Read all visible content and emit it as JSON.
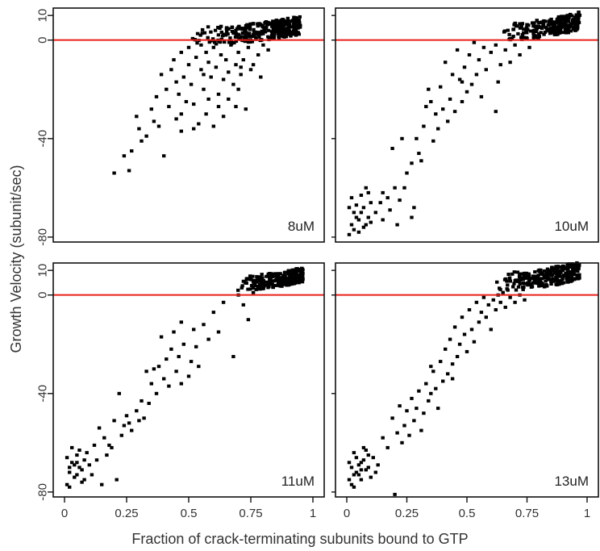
{
  "chart_data": {
    "type": "scatter",
    "xlabel": "Fraction of crack-terminating subunits bound to GTP",
    "ylabel": "Growth Velocity (subunit/sec)",
    "xlim": [
      0,
      1
    ],
    "ylim": [
      -82,
      13
    ],
    "x_ticks": [
      0,
      0.25,
      0.5,
      0.75,
      1
    ],
    "x_tick_labels": [
      "0",
      "0.25",
      "0.5",
      "0.75",
      "1"
    ],
    "y_ticks": [
      10,
      0,
      -40,
      -80
    ],
    "y_tick_labels": [
      "10",
      "0",
      "-40",
      "-80"
    ],
    "reference_line": {
      "y": 0,
      "color": "#e8211c"
    },
    "marker_color": "#000000",
    "grid": false,
    "panels": [
      {
        "label": "8uM",
        "points": [
          [
            0.2,
            -54
          ],
          [
            0.24,
            -47
          ],
          [
            0.26,
            -53
          ],
          [
            0.27,
            -45
          ],
          [
            0.29,
            -31
          ],
          [
            0.3,
            -36
          ],
          [
            0.31,
            -41
          ],
          [
            0.33,
            -39
          ],
          [
            0.35,
            -28
          ],
          [
            0.36,
            -33
          ],
          [
            0.37,
            -23
          ],
          [
            0.38,
            -35
          ],
          [
            0.39,
            -14
          ],
          [
            0.4,
            -47
          ],
          [
            0.41,
            -20
          ],
          [
            0.42,
            -27
          ],
          [
            0.43,
            -12
          ],
          [
            0.44,
            -8
          ],
          [
            0.45,
            -32
          ],
          [
            0.45,
            -17
          ],
          [
            0.46,
            -22
          ],
          [
            0.47,
            -30
          ],
          [
            0.47,
            -5
          ],
          [
            0.48,
            -15
          ],
          [
            0.49,
            -25
          ],
          [
            0.5,
            -10
          ],
          [
            0.5,
            -3
          ],
          [
            0.51,
            -18
          ],
          [
            0.52,
            -26
          ],
          [
            0.53,
            -7
          ],
          [
            0.54,
            -34
          ],
          [
            0.55,
            -12
          ],
          [
            0.55,
            -2
          ],
          [
            0.56,
            -20
          ],
          [
            0.57,
            -30
          ],
          [
            0.57,
            -5
          ],
          [
            0.58,
            -9
          ],
          [
            0.59,
            -15
          ],
          [
            0.6,
            -3
          ],
          [
            0.6,
            -35
          ],
          [
            0.61,
            -11
          ],
          [
            0.62,
            -22
          ],
          [
            0.63,
            -6
          ],
          [
            0.64,
            -16
          ],
          [
            0.65,
            -8
          ],
          [
            0.66,
            -13
          ],
          [
            0.67,
            -2
          ],
          [
            0.68,
            -18
          ],
          [
            0.69,
            -10
          ],
          [
            0.7,
            -5
          ],
          [
            0.71,
            -14
          ],
          [
            0.72,
            -8
          ],
          [
            0.73,
            -28
          ],
          [
            0.74,
            -3
          ],
          [
            0.75,
            -12
          ],
          [
            0.62,
            -27
          ],
          [
            0.66,
            -24
          ],
          [
            0.7,
            -20
          ],
          [
            0.64,
            -31
          ],
          [
            0.58,
            -24
          ],
          [
            0.78,
            -6
          ],
          [
            0.8,
            -2
          ],
          [
            0.82,
            -4
          ],
          [
            0.76,
            -10
          ],
          [
            0.79,
            -15
          ],
          [
            0.71,
            -11
          ],
          [
            0.52,
            -36
          ],
          [
            0.47,
            -37
          ],
          [
            0.69,
            -27
          ],
          [
            0.56,
            -14
          ]
        ],
        "dense_cluster": {
          "x": [
            0.48,
            0.95
          ],
          "y": [
            -2,
            8
          ],
          "count": 320
        }
      },
      {
        "label": "10uM",
        "points": [
          [
            0.01,
            -79
          ],
          [
            0.02,
            -75
          ],
          [
            0.03,
            -70
          ],
          [
            0.04,
            -67
          ],
          [
            0.05,
            -73
          ],
          [
            0.06,
            -63
          ],
          [
            0.07,
            -68
          ],
          [
            0.08,
            -60
          ],
          [
            0.09,
            -72
          ],
          [
            0.1,
            -66
          ],
          [
            0.01,
            -68
          ],
          [
            0.02,
            -64
          ],
          [
            0.03,
            -77
          ],
          [
            0.05,
            -78
          ],
          [
            0.06,
            -70
          ],
          [
            0.08,
            -75
          ],
          [
            0.09,
            -62
          ],
          [
            0.1,
            -74
          ],
          [
            0.04,
            -72
          ],
          [
            0.07,
            -76
          ],
          [
            0.12,
            -70
          ],
          [
            0.14,
            -66
          ],
          [
            0.15,
            -73
          ],
          [
            0.17,
            -64
          ],
          [
            0.18,
            -69
          ],
          [
            0.19,
            -44
          ],
          [
            0.2,
            -60
          ],
          [
            0.21,
            -75
          ],
          [
            0.22,
            -65
          ],
          [
            0.24,
            -60
          ],
          [
            0.25,
            -54
          ],
          [
            0.27,
            -50
          ],
          [
            0.28,
            -68
          ],
          [
            0.29,
            -40
          ],
          [
            0.3,
            -46
          ],
          [
            0.31,
            -49
          ],
          [
            0.32,
            -35
          ],
          [
            0.34,
            -20
          ],
          [
            0.35,
            -25
          ],
          [
            0.36,
            -41
          ],
          [
            0.37,
            -30
          ],
          [
            0.38,
            -36
          ],
          [
            0.39,
            -19
          ],
          [
            0.4,
            -28
          ],
          [
            0.41,
            -9
          ],
          [
            0.42,
            -33
          ],
          [
            0.43,
            -24
          ],
          [
            0.44,
            -14
          ],
          [
            0.45,
            -29
          ],
          [
            0.46,
            -4
          ],
          [
            0.47,
            -16
          ],
          [
            0.48,
            -25
          ],
          [
            0.49,
            -11
          ],
          [
            0.5,
            -21
          ],
          [
            0.51,
            -6
          ],
          [
            0.52,
            -18
          ],
          [
            0.53,
            -1
          ],
          [
            0.54,
            -14
          ],
          [
            0.55,
            -8
          ],
          [
            0.56,
            -23
          ],
          [
            0.57,
            -3
          ],
          [
            0.58,
            -12
          ],
          [
            0.6,
            -5
          ],
          [
            0.62,
            -2
          ],
          [
            0.63,
            -17
          ],
          [
            0.64,
            -10
          ],
          [
            0.66,
            -4
          ],
          [
            0.68,
            -9
          ],
          [
            0.7,
            -2
          ],
          [
            0.72,
            -6
          ],
          [
            0.74,
            1
          ],
          [
            0.76,
            -3
          ],
          [
            0.62,
            -29
          ],
          [
            0.48,
            -17
          ],
          [
            0.27,
            -72
          ],
          [
            0.23,
            -40
          ],
          [
            0.15,
            -62
          ],
          [
            0.33,
            -27
          ]
        ],
        "dense_cluster": {
          "x": [
            0.64,
            0.97
          ],
          "y": [
            0,
            10
          ],
          "count": 240
        }
      },
      {
        "label": "11uM",
        "points": [
          [
            0.01,
            -77
          ],
          [
            0.02,
            -72
          ],
          [
            0.03,
            -68
          ],
          [
            0.04,
            -74
          ],
          [
            0.05,
            -65
          ],
          [
            0.06,
            -70
          ],
          [
            0.07,
            -76
          ],
          [
            0.08,
            -67
          ],
          [
            0.01,
            -66
          ],
          [
            0.02,
            -78
          ],
          [
            0.03,
            -62
          ],
          [
            0.04,
            -69
          ],
          [
            0.05,
            -73
          ],
          [
            0.06,
            -63
          ],
          [
            0.07,
            -71
          ],
          [
            0.08,
            -75
          ],
          [
            0.09,
            -64
          ],
          [
            0.1,
            -69
          ],
          [
            0.02,
            -70
          ],
          [
            0.05,
            -68
          ],
          [
            0.11,
            -73
          ],
          [
            0.12,
            -61
          ],
          [
            0.13,
            -67
          ],
          [
            0.14,
            -54
          ],
          [
            0.15,
            -77
          ],
          [
            0.16,
            -58
          ],
          [
            0.17,
            -65
          ],
          [
            0.18,
            -61
          ],
          [
            0.19,
            -62
          ],
          [
            0.2,
            -51
          ],
          [
            0.21,
            -75
          ],
          [
            0.22,
            -40
          ],
          [
            0.23,
            -57
          ],
          [
            0.24,
            -53
          ],
          [
            0.25,
            -49
          ],
          [
            0.26,
            -52
          ],
          [
            0.27,
            -55
          ],
          [
            0.29,
            -47
          ],
          [
            0.3,
            -51
          ],
          [
            0.31,
            -43
          ],
          [
            0.32,
            -50
          ],
          [
            0.33,
            -31
          ],
          [
            0.34,
            -44
          ],
          [
            0.35,
            -36
          ],
          [
            0.36,
            -30
          ],
          [
            0.37,
            -40
          ],
          [
            0.38,
            -29
          ],
          [
            0.39,
            -17
          ],
          [
            0.4,
            -34
          ],
          [
            0.41,
            -26
          ],
          [
            0.42,
            -37
          ],
          [
            0.43,
            -22
          ],
          [
            0.44,
            -15
          ],
          [
            0.45,
            -31
          ],
          [
            0.46,
            -25
          ],
          [
            0.47,
            -36
          ],
          [
            0.48,
            -20
          ],
          [
            0.5,
            -33
          ],
          [
            0.51,
            -27
          ],
          [
            0.52,
            -14
          ],
          [
            0.54,
            -29
          ],
          [
            0.56,
            -12
          ],
          [
            0.58,
            -18
          ],
          [
            0.6,
            -7
          ],
          [
            0.62,
            -15
          ],
          [
            0.64,
            -3
          ],
          [
            0.68,
            -25
          ],
          [
            0.7,
            0
          ],
          [
            0.72,
            -4
          ],
          [
            0.74,
            -10
          ],
          [
            0.76,
            1
          ],
          [
            0.53,
            -21
          ],
          [
            0.47,
            -11
          ]
        ],
        "dense_cluster": {
          "x": [
            0.68,
            0.96
          ],
          "y": [
            2,
            10
          ],
          "count": 260
        }
      },
      {
        "label": "13uM",
        "points": [
          [
            0.01,
            -75
          ],
          [
            0.02,
            -70
          ],
          [
            0.03,
            -78
          ],
          [
            0.04,
            -66
          ],
          [
            0.05,
            -73
          ],
          [
            0.06,
            -68
          ],
          [
            0.07,
            -62
          ],
          [
            0.08,
            -71
          ],
          [
            0.01,
            -68
          ],
          [
            0.02,
            -77
          ],
          [
            0.03,
            -64
          ],
          [
            0.04,
            -72
          ],
          [
            0.05,
            -69
          ],
          [
            0.06,
            -75
          ],
          [
            0.07,
            -67
          ],
          [
            0.08,
            -63
          ],
          [
            0.09,
            -70
          ],
          [
            0.1,
            -74
          ],
          [
            0.11,
            -66
          ],
          [
            0.12,
            -72
          ],
          [
            0.03,
            -73
          ],
          [
            0.06,
            -71
          ],
          [
            0.09,
            -65
          ],
          [
            0.13,
            -69
          ],
          [
            0.15,
            -58
          ],
          [
            0.17,
            -62
          ],
          [
            0.19,
            -50
          ],
          [
            0.2,
            -81
          ],
          [
            0.21,
            -56
          ],
          [
            0.22,
            -45
          ],
          [
            0.23,
            -60
          ],
          [
            0.24,
            -53
          ],
          [
            0.25,
            -47
          ],
          [
            0.26,
            -57
          ],
          [
            0.27,
            -42
          ],
          [
            0.28,
            -51
          ],
          [
            0.29,
            -46
          ],
          [
            0.3,
            -39
          ],
          [
            0.31,
            -55
          ],
          [
            0.32,
            -48
          ],
          [
            0.33,
            -36
          ],
          [
            0.34,
            -43
          ],
          [
            0.35,
            -40
          ],
          [
            0.36,
            -31
          ],
          [
            0.37,
            -38
          ],
          [
            0.38,
            -46
          ],
          [
            0.39,
            -27
          ],
          [
            0.4,
            -35
          ],
          [
            0.41,
            -22
          ],
          [
            0.42,
            -32
          ],
          [
            0.43,
            -18
          ],
          [
            0.44,
            -28
          ],
          [
            0.45,
            -13
          ],
          [
            0.46,
            -25
          ],
          [
            0.47,
            -20
          ],
          [
            0.48,
            -9
          ],
          [
            0.49,
            -16
          ],
          [
            0.5,
            -23
          ],
          [
            0.51,
            -6
          ],
          [
            0.52,
            -14
          ],
          [
            0.53,
            -19
          ],
          [
            0.54,
            -3
          ],
          [
            0.55,
            -11
          ],
          [
            0.56,
            -7
          ],
          [
            0.57,
            -1
          ],
          [
            0.58,
            -9
          ],
          [
            0.59,
            -4
          ],
          [
            0.6,
            -14
          ],
          [
            0.61,
            -2
          ],
          [
            0.62,
            -6
          ],
          [
            0.63,
            0
          ],
          [
            0.64,
            -3
          ],
          [
            0.65,
            1
          ],
          [
            0.66,
            -5
          ],
          [
            0.67,
            2
          ],
          [
            0.68,
            -1
          ],
          [
            0.7,
            -3
          ],
          [
            0.72,
            0
          ],
          [
            0.74,
            -2
          ],
          [
            0.35,
            -29
          ],
          [
            0.44,
            -34
          ]
        ],
        "dense_cluster": {
          "x": [
            0.62,
            0.97
          ],
          "y": [
            2,
            12
          ],
          "count": 260
        }
      }
    ]
  }
}
